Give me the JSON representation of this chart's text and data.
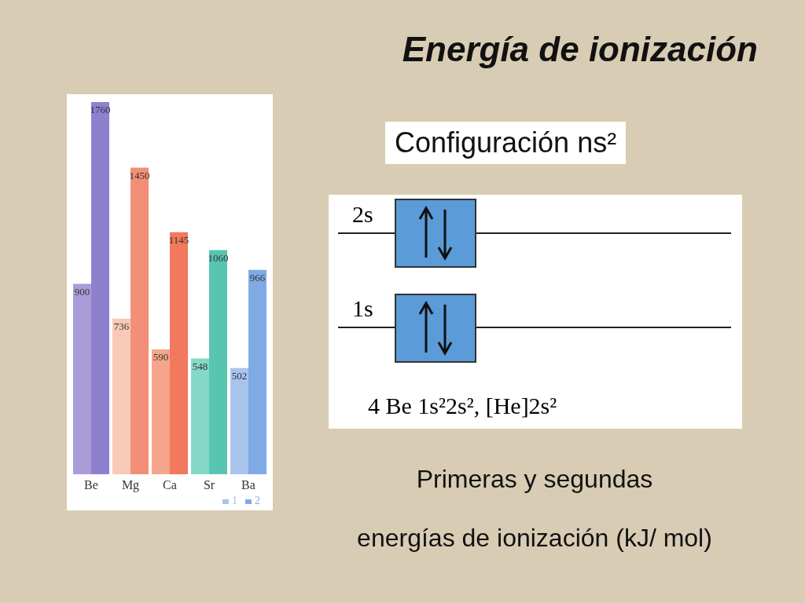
{
  "chart_data": {
    "type": "bar",
    "title": "Energía de ionización",
    "categories": [
      "Be",
      "Mg",
      "Ca",
      "Sr",
      "Ba"
    ],
    "series": [
      {
        "name": "1",
        "colors": [
          "#a99cd8",
          "#f7c9b6",
          "#f5a58c",
          "#86d8c6",
          "#a8c4ec"
        ],
        "values": [
          900,
          736,
          590,
          548,
          502
        ]
      },
      {
        "name": "2",
        "colors": [
          "#8f80cf",
          "#f28f76",
          "#f2785e",
          "#58c5b1",
          "#7eaae6"
        ],
        "values": [
          1760,
          1450,
          1145,
          1060,
          966
        ]
      }
    ],
    "data_labels": true,
    "legend": "bottom right",
    "annotations": [
      "Configuración ns²",
      "2s",
      "1s",
      "4 Be 1s²2s², [He]2s²",
      "Primeras y segundas",
      "energías de ionización (kJ/ mol)"
    ]
  }
}
